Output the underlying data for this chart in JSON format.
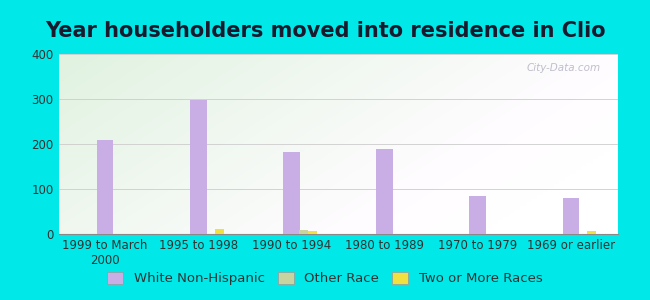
{
  "title": "Year householders moved into residence in Clio",
  "categories": [
    "1999 to March\n2000",
    "1995 to 1998",
    "1990 to 1994",
    "1980 to 1989",
    "1970 to 1979",
    "1969 or earlier"
  ],
  "white_non_hispanic": [
    210,
    298,
    183,
    190,
    85,
    80
  ],
  "other_race": [
    0,
    0,
    10,
    0,
    0,
    0
  ],
  "two_or_more_races": [
    0,
    12,
    7,
    0,
    0,
    7
  ],
  "white_color": "#c9aee5",
  "other_race_color": "#c8d4a0",
  "two_or_more_color": "#f0e040",
  "background_outer": "#00e8e8",
  "ylim": [
    0,
    400
  ],
  "yticks": [
    0,
    100,
    200,
    300,
    400
  ],
  "title_fontsize": 15,
  "tick_fontsize": 8.5,
  "legend_fontsize": 9.5,
  "bar_width": 0.18
}
